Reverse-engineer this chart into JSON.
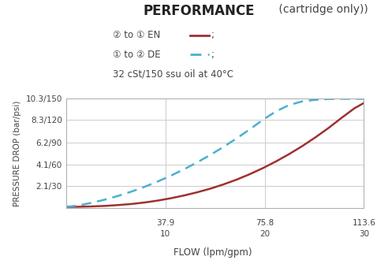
{
  "title_bold": "PERFORMANCE",
  "title_normal": " (cartridge only))",
  "legend_line1": "② to ① EN",
  "legend_line2": "① to ② DE",
  "legend_line3": "32 cSt/150 ssu oil at 40°C",
  "xlabel": "FLOW (lpm/gpm)",
  "ylabel": "PRESSURE DROP (bar/psi)",
  "x_ticks": [
    0,
    37.9,
    75.8,
    113.6
  ],
  "x_tick_labels_top": [
    "",
    "37.9",
    "75.8",
    "113.6"
  ],
  "x_tick_labels_bot": [
    "",
    "10",
    "20",
    "30"
  ],
  "y_ticks": [
    0,
    2.1,
    4.1,
    6.2,
    8.3,
    10.3
  ],
  "y_tick_labels": [
    "",
    "2.1/30",
    "4.1/60",
    "6.2/90",
    "8.3/120",
    "10.3/150"
  ],
  "xlim": [
    0,
    113.6
  ],
  "ylim": [
    0,
    10.3
  ],
  "color_solid": "#a03030",
  "color_dashed": "#4ab0d0",
  "color_grid": "#cccccc",
  "background": "#ffffff",
  "solid_x": [
    0,
    5,
    10,
    15,
    20,
    25,
    30,
    35,
    40,
    45,
    50,
    55,
    60,
    65,
    70,
    75,
    80,
    85,
    90,
    95,
    100,
    105,
    110,
    113.6
  ],
  "solid_y": [
    0.1,
    0.12,
    0.15,
    0.2,
    0.28,
    0.38,
    0.52,
    0.7,
    0.92,
    1.18,
    1.48,
    1.82,
    2.22,
    2.67,
    3.18,
    3.75,
    4.38,
    5.07,
    5.82,
    6.64,
    7.52,
    8.48,
    9.4,
    9.9
  ],
  "dashed_x": [
    0,
    5,
    10,
    15,
    20,
    25,
    30,
    35,
    40,
    45,
    50,
    55,
    60,
    65,
    70,
    75,
    80,
    85,
    90,
    95,
    100,
    105,
    110,
    113.6
  ],
  "dashed_y": [
    0.1,
    0.25,
    0.5,
    0.8,
    1.15,
    1.55,
    2.0,
    2.5,
    3.05,
    3.65,
    4.3,
    5.0,
    5.75,
    6.55,
    7.4,
    8.3,
    9.1,
    9.7,
    10.05,
    10.2,
    10.28,
    10.3,
    10.3,
    10.3
  ]
}
